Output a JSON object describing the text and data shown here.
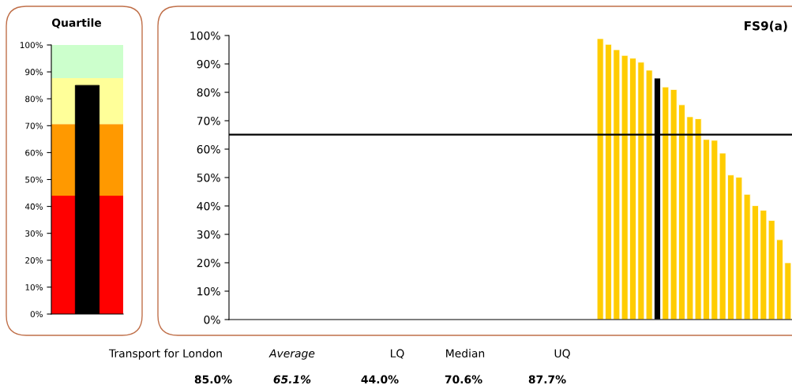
{
  "chart_data": [
    {
      "type": "bar",
      "title": "Quartile",
      "categories": [
        null
      ],
      "values": [
        85.0
      ],
      "color": "#000000",
      "ylim": [
        0,
        100
      ],
      "yticks": [
        {
          "value": 0,
          "label": "0%"
        },
        {
          "value": 10,
          "label": "10%"
        },
        {
          "value": 20,
          "label": "20%"
        },
        {
          "value": 30,
          "label": "30%"
        },
        {
          "value": 40,
          "label": "40%"
        },
        {
          "value": 50,
          "label": "50%"
        },
        {
          "value": 60,
          "label": "60%"
        },
        {
          "value": 70,
          "label": "70%"
        },
        {
          "value": 80,
          "label": "80%"
        },
        {
          "value": 90,
          "label": "90%"
        },
        {
          "value": 100,
          "label": "100%"
        }
      ],
      "bands": [
        {
          "axis": "y",
          "from": 0,
          "to": 44.0,
          "color": "#ff0000"
        },
        {
          "axis": "y",
          "from": 44.0,
          "to": 70.6,
          "color": "#ff9900"
        },
        {
          "axis": "y",
          "from": 70.6,
          "to": 87.7,
          "color": "#ffff99"
        },
        {
          "axis": "y",
          "from": 87.7,
          "to": 100,
          "color": "#ccffcc"
        }
      ],
      "grid": false,
      "legend": false,
      "tick_labels": "y"
    },
    {
      "type": "bar",
      "title": "FS9(a)",
      "categories": [
        null,
        null,
        null,
        null,
        null,
        null,
        null,
        null,
        null,
        null,
        null,
        null,
        null,
        null,
        null,
        null,
        null,
        null,
        null,
        null,
        null,
        null,
        null,
        null,
        null,
        null,
        null,
        null,
        null,
        null,
        null,
        null,
        null,
        null,
        null,
        null,
        null,
        null,
        null,
        null,
        null,
        null,
        null,
        null,
        null,
        null,
        null,
        null,
        null,
        null,
        null,
        null,
        null,
        null,
        null,
        null,
        null,
        null,
        null,
        null,
        null,
        null,
        null,
        null,
        null,
        null,
        null,
        null,
        null
      ],
      "values": [
        null,
        null,
        null,
        null,
        null,
        null,
        null,
        null,
        null,
        null,
        null,
        null,
        null,
        null,
        null,
        null,
        null,
        null,
        null,
        null,
        null,
        null,
        null,
        null,
        null,
        null,
        null,
        null,
        null,
        null,
        null,
        null,
        null,
        null,
        null,
        null,
        null,
        null,
        null,
        null,
        null,
        null,
        null,
        null,
        null,
        98.9,
        96.9,
        95.0,
        93.0,
        92.0,
        90.6,
        87.8,
        85.0,
        81.9,
        81.0,
        75.6,
        71.4,
        70.7,
        63.4,
        63.1,
        58.6,
        50.9,
        50.1,
        44.1,
        40.1,
        38.5,
        34.9,
        28.1,
        20.0
      ],
      "colors": [
        "#ffcc00",
        "#ffcc00",
        "#ffcc00",
        "#ffcc00",
        "#ffcc00",
        "#ffcc00",
        "#ffcc00",
        "#ffcc00",
        "#ffcc00",
        "#ffcc00",
        "#ffcc00",
        "#ffcc00",
        "#ffcc00",
        "#ffcc00",
        "#ffcc00",
        "#ffcc00",
        "#ffcc00",
        "#ffcc00",
        "#ffcc00",
        "#ffcc00",
        "#ffcc00",
        "#ffcc00",
        "#ffcc00",
        "#ffcc00",
        "#ffcc00",
        "#ffcc00",
        "#ffcc00",
        "#ffcc00",
        "#ffcc00",
        "#ffcc00",
        "#ffcc00",
        "#ffcc00",
        "#ffcc00",
        "#ffcc00",
        "#ffcc00",
        "#ffcc00",
        "#ffcc00",
        "#ffcc00",
        "#ffcc00",
        "#ffcc00",
        "#ffcc00",
        "#ffcc00",
        "#ffcc00",
        "#ffcc00",
        "#ffcc00",
        "#ffcc00",
        "#ffcc00",
        "#ffcc00",
        "#ffcc00",
        "#ffcc00",
        "#ffcc00",
        "#ffcc00",
        "#000000",
        "#ffcc00",
        "#ffcc00",
        "#ffcc00",
        "#ffcc00",
        "#ffcc00",
        "#ffcc00",
        "#ffcc00",
        "#ffcc00",
        "#ffcc00",
        "#ffcc00",
        "#ffcc00",
        "#ffcc00",
        "#ffcc00",
        "#ffcc00",
        "#ffcc00",
        "#ffcc00"
      ],
      "ylim": [
        0,
        100
      ],
      "yticks": [
        {
          "value": 0,
          "label": "0%"
        },
        {
          "value": 10,
          "label": "10%"
        },
        {
          "value": 20,
          "label": "20%"
        },
        {
          "value": 30,
          "label": "30%"
        },
        {
          "value": 40,
          "label": "40%"
        },
        {
          "value": 50,
          "label": "50%"
        },
        {
          "value": 60,
          "label": "60%"
        },
        {
          "value": 70,
          "label": "70%"
        },
        {
          "value": 80,
          "label": "80%"
        },
        {
          "value": 90,
          "label": "90%"
        },
        {
          "value": 100,
          "label": "100%"
        }
      ],
      "ref_lines": [
        {
          "axis": "y",
          "value": 65.1,
          "color": "#000000"
        }
      ],
      "annotations": [
        "Transport for London",
        "Average",
        "LQ",
        "Median",
        "UQ",
        "85.0%",
        "65.1%",
        "44.0%",
        "70.6%",
        "87.7%"
      ],
      "grid": false,
      "legend": false,
      "tick_labels": "y"
    }
  ]
}
